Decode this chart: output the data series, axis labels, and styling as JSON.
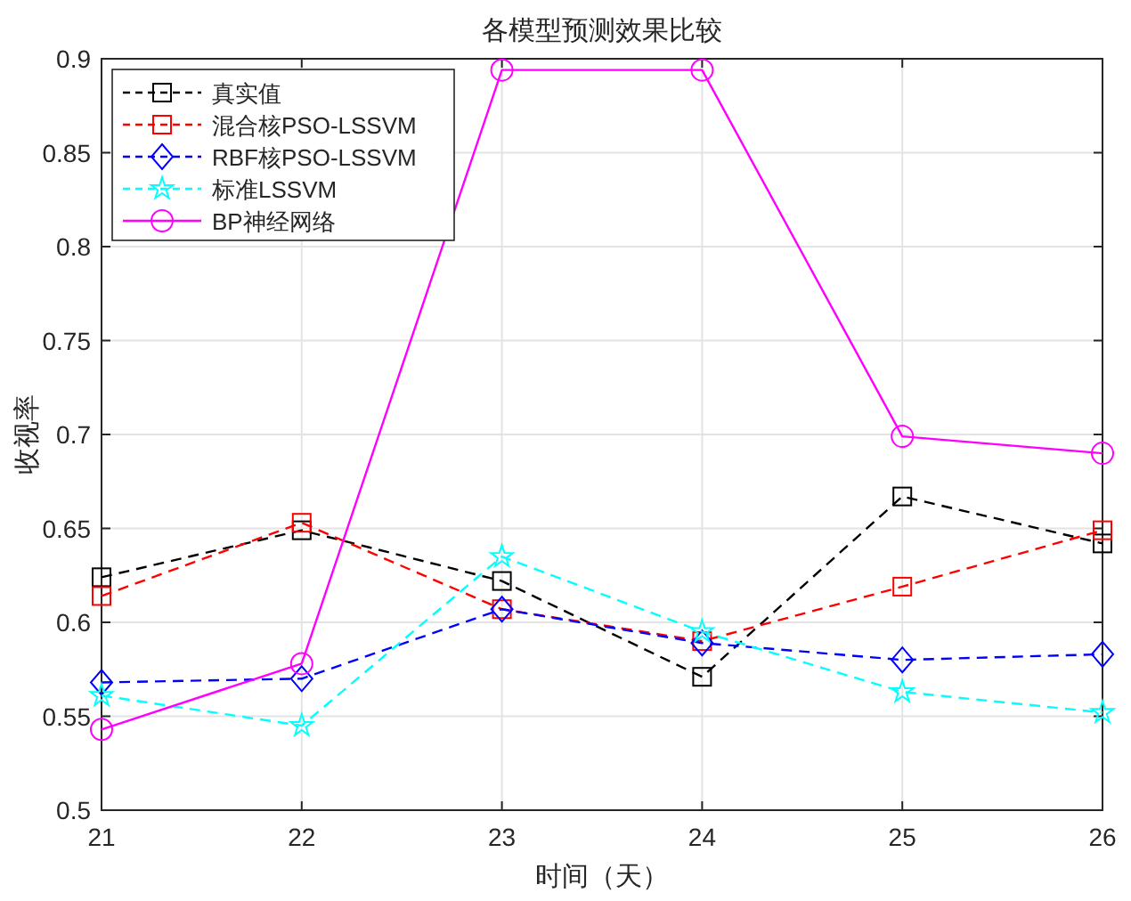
{
  "chart_data": {
    "type": "line",
    "title": "各模型预测效果比较",
    "xlabel": "时间（天）",
    "ylabel": "收视率",
    "x": [
      21,
      22,
      23,
      24,
      25,
      26
    ],
    "xlim": [
      21,
      26
    ],
    "xticks": [
      21,
      22,
      23,
      24,
      25,
      26
    ],
    "ylim": [
      0.5,
      0.9
    ],
    "yticks": [
      0.5,
      0.55,
      0.6,
      0.65,
      0.7,
      0.75,
      0.8,
      0.85,
      0.9
    ],
    "grid": true,
    "legend": "top left",
    "series": [
      {
        "name": "真实值",
        "color": "#000000",
        "line_style": "dashed",
        "marker": "square",
        "values": [
          0.624,
          0.649,
          0.622,
          0.571,
          0.667,
          0.642
        ]
      },
      {
        "name": "混合核PSO-LSSVM",
        "color": "#ff0000",
        "line_style": "dashed",
        "marker": "square",
        "values": [
          0.614,
          0.653,
          0.607,
          0.59,
          0.619,
          0.649
        ]
      },
      {
        "name": "RBF核PSO-LSSVM",
        "color": "#0000ff",
        "line_style": "dashed",
        "marker": "diamond",
        "values": [
          0.568,
          0.57,
          0.607,
          0.589,
          0.58,
          0.583
        ]
      },
      {
        "name": "标准LSSVM",
        "color": "#00ffff",
        "line_style": "dashed",
        "marker": "star",
        "values": [
          0.561,
          0.545,
          0.635,
          0.595,
          0.563,
          0.552
        ]
      },
      {
        "name": "BP神经网络",
        "color": "#ff00ff",
        "line_style": "solid",
        "marker": "circle",
        "values": [
          0.543,
          0.578,
          0.894,
          0.894,
          0.699,
          0.69
        ]
      }
    ]
  }
}
